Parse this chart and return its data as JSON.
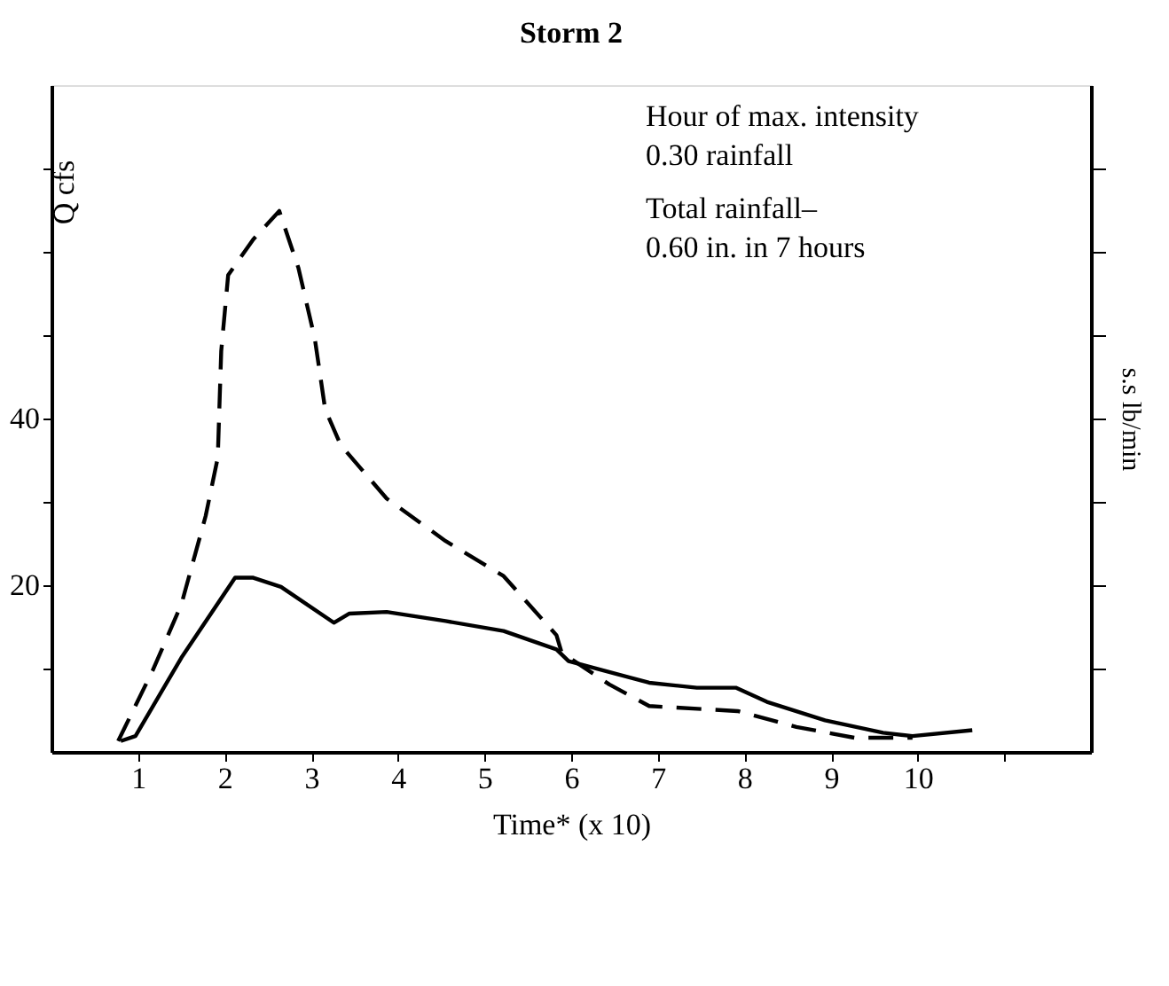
{
  "chart_data": {
    "type": "line",
    "title": "Storm 2",
    "xlabel": "Time* (x 10)",
    "ylabel": "Q cfs",
    "y2label": "s.s lb/min",
    "annotations": [
      "Hour of max. intensity",
      "0.30 rainfall",
      "Total rainfall–",
      "0.60 in. in 7 hours"
    ],
    "xlim": [
      0,
      12
    ],
    "xticks": [
      1,
      2,
      3,
      4,
      5,
      6,
      7,
      8,
      9,
      10,
      {
        "value": 11,
        "label": null
      }
    ],
    "ylim": [
      0,
      80
    ],
    "yticks": [
      {
        "value": 10,
        "label": null
      },
      20,
      {
        "value": 30,
        "label": null
      },
      40,
      {
        "value": 50,
        "label": null
      },
      {
        "value": 60,
        "label": null
      },
      {
        "value": 70,
        "label": null
      }
    ],
    "grid": false,
    "marker": "none",
    "series": [
      {
        "color": "#000000",
        "line_style": "solid",
        "x": [
          0.8,
          0.97,
          1.5,
          2.12,
          2.33,
          2.65,
          3.26,
          3.44,
          3.87,
          4.55,
          5.22,
          5.83,
          5.97,
          6.9,
          7.45,
          7.9,
          8.26,
          8.93,
          9.6,
          9.94,
          10.63
        ],
        "values": [
          1.3,
          1.9,
          11.3,
          20.9,
          20.9,
          19.8,
          15.5,
          16.6,
          16.8,
          15.7,
          14.5,
          12.3,
          10.9,
          8.3,
          7.7,
          7.7,
          6.0,
          3.8,
          2.3,
          1.9,
          2.6
        ]
      },
      {
        "color": "#000000",
        "line_style": "dashed",
        "x": [
          0.77,
          1.17,
          1.5,
          1.78,
          1.92,
          1.96,
          2.04,
          2.33,
          2.63,
          2.85,
          3.04,
          3.16,
          3.34,
          3.87,
          4.55,
          5.22,
          5.83,
          5.89,
          6.44,
          6.9,
          7.92,
          8.6,
          9.27,
          9.94
        ],
        "values": [
          1.3,
          9.8,
          17.7,
          28.3,
          35.3,
          48.1,
          57.2,
          61.5,
          64.9,
          58.1,
          49.6,
          41.1,
          36.8,
          30.4,
          25.3,
          21.1,
          14.0,
          11.9,
          8.1,
          5.5,
          4.9,
          3.0,
          1.7,
          1.7
        ]
      }
    ]
  }
}
